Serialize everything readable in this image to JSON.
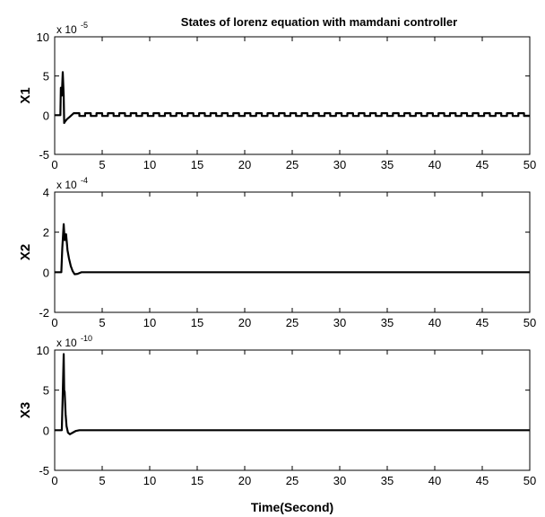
{
  "chart_data": [
    {
      "type": "line",
      "title": "States of lorenz equation with mamdani controller",
      "ylabel": "X1",
      "xlabel": "",
      "exponent_base": "x 10",
      "exponent_power": "-5",
      "xlim": [
        0,
        50
      ],
      "ylim": [
        -5,
        10
      ],
      "xticks": [
        0,
        5,
        10,
        15,
        20,
        25,
        30,
        35,
        40,
        45,
        50
      ],
      "yticks": [
        -5,
        0,
        5,
        10
      ],
      "grid": false,
      "series": [
        {
          "x": [
            0,
            0.5,
            0.6,
            0.65,
            0.75,
            0.85,
            0.95,
            1.0,
            1.1,
            1.3,
            1.6,
            2.0,
            2.5,
            3.0,
            3.5,
            50
          ],
          "y": [
            0,
            0,
            0,
            3.5,
            2.5,
            5.5,
            2.5,
            -1.0,
            -0.8,
            -0.5,
            -0.2,
            0.1,
            0.2,
            0.1,
            0,
            0
          ],
          "ripple": {
            "from": 2,
            "to": 50,
            "amplitude": 0.25,
            "period": 1.2
          }
        }
      ]
    },
    {
      "type": "line",
      "ylabel": "X2",
      "xlabel": "",
      "exponent_base": "x 10",
      "exponent_power": "-4",
      "xlim": [
        0,
        50
      ],
      "ylim": [
        -2,
        4
      ],
      "xticks": [
        0,
        5,
        10,
        15,
        20,
        25,
        30,
        35,
        40,
        45,
        50
      ],
      "yticks": [
        -2,
        0,
        2,
        4
      ],
      "grid": false,
      "series": [
        {
          "x": [
            0,
            0.7,
            0.8,
            0.95,
            1.05,
            1.2,
            1.35,
            1.5,
            1.7,
            1.9,
            2.1,
            2.4,
            2.8,
            3.2,
            50
          ],
          "y": [
            0,
            0,
            1.2,
            2.4,
            1.6,
            1.9,
            1.1,
            0.7,
            0.3,
            0.05,
            -0.1,
            -0.08,
            0,
            0,
            0
          ]
        }
      ]
    },
    {
      "type": "line",
      "ylabel": "X3",
      "xlabel": "Time(Second)",
      "exponent_base": "x 10",
      "exponent_power": "-10",
      "xlim": [
        0,
        50
      ],
      "ylim": [
        -5,
        10
      ],
      "xticks": [
        0,
        5,
        10,
        15,
        20,
        25,
        30,
        35,
        40,
        45,
        50
      ],
      "yticks": [
        -5,
        0,
        5,
        10
      ],
      "grid": false,
      "series": [
        {
          "x": [
            0,
            0.75,
            0.85,
            0.95,
            1.0,
            1.05,
            1.15,
            1.25,
            1.4,
            1.6,
            1.9,
            2.2,
            2.6,
            3.0,
            50
          ],
          "y": [
            0,
            0,
            4.5,
            9.5,
            5.0,
            4.8,
            2.0,
            0.5,
            -0.3,
            -0.5,
            -0.3,
            -0.1,
            0,
            0,
            0
          ]
        }
      ]
    }
  ]
}
